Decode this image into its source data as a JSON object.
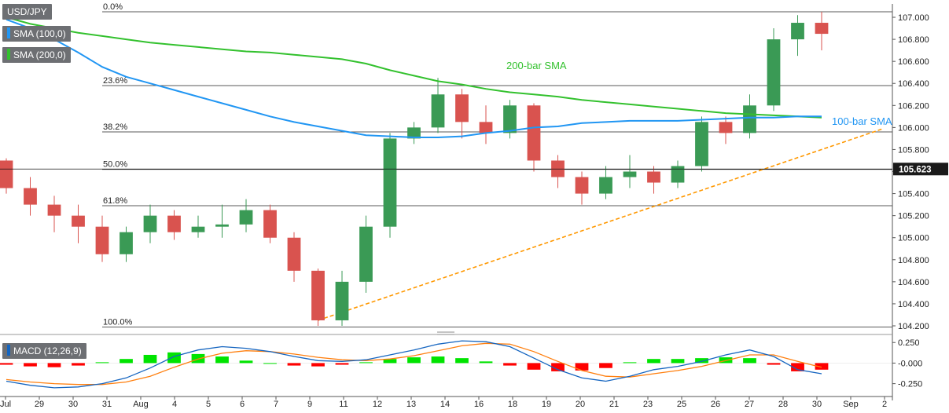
{
  "legend": {
    "symbol": "USD/JPY",
    "sma100": "SMA (100,0)",
    "sma200": "SMA (200,0)",
    "macd": "MACD (12,26,9)"
  },
  "colors": {
    "up": "#3a9a55",
    "down": "#d9534f",
    "sma100": "#2196f3",
    "sma200": "#33c12e",
    "trend": "#ff9800",
    "macd_line": "#1565c0",
    "signal_line": "#ff7f0e",
    "hist_up": "#00e400",
    "hist_down": "#ff0000",
    "price_tag": "#1a1a1a"
  },
  "chart_data": [
    {
      "type": "candlestick",
      "title": "USD/JPY",
      "ylim": [
        104.2,
        107.05
      ],
      "price_ticks": [
        "107.000",
        "106.800",
        "106.600",
        "106.400",
        "106.200",
        "106.000",
        "105.800",
        "105.600",
        "105.400",
        "105.200",
        "105.000",
        "104.800",
        "104.600",
        "104.400",
        "104.200"
      ],
      "last_price": "105.623",
      "x_labels": [
        "Jul",
        "29",
        "30",
        "31",
        "Aug",
        "4",
        "5",
        "6",
        "7",
        "9",
        "11",
        "12",
        "13",
        "14",
        "16",
        "18",
        "19",
        "20",
        "21",
        "23",
        "25",
        "26",
        "27",
        "28",
        "30",
        "Sep",
        "2"
      ],
      "fib_levels": [
        {
          "label": "0.0%",
          "value": 107.05
        },
        {
          "label": "23.6%",
          "value": 106.38
        },
        {
          "label": "38.2%",
          "value": 105.96
        },
        {
          "label": "50.0%",
          "value": 105.62
        },
        {
          "label": "61.8%",
          "value": 105.29
        },
        {
          "label": "100.0%",
          "value": 104.19
        }
      ],
      "annotations": [
        {
          "label": "200-bar SMA"
        },
        {
          "label": "100-bar SMA"
        }
      ],
      "sma100": [
        106.98,
        106.9,
        106.8,
        106.68,
        106.55,
        106.46,
        106.4,
        106.34,
        106.28,
        106.22,
        106.16,
        106.1,
        106.05,
        106.01,
        105.97,
        105.93,
        105.92,
        105.91,
        105.91,
        105.92,
        105.95,
        105.97,
        106.0,
        106.01,
        106.04,
        106.05,
        106.06,
        106.06,
        106.06,
        106.07,
        106.08,
        106.09,
        106.09,
        106.1,
        106.1
      ],
      "sma200": [
        107.0,
        106.94,
        106.9,
        106.86,
        106.83,
        106.8,
        106.77,
        106.75,
        106.73,
        106.71,
        106.69,
        106.68,
        106.66,
        106.64,
        106.62,
        106.58,
        106.52,
        106.47,
        106.42,
        106.39,
        106.35,
        106.32,
        106.3,
        106.28,
        106.25,
        106.23,
        106.21,
        106.19,
        106.17,
        106.15,
        106.13,
        106.12,
        106.11,
        106.1,
        106.09
      ],
      "candles": [
        [
          105.7,
          105.45,
          105.72,
          105.4
        ],
        [
          105.45,
          105.3,
          105.55,
          105.2
        ],
        [
          105.3,
          105.2,
          105.38,
          105.05
        ],
        [
          105.2,
          105.1,
          105.3,
          104.95
        ],
        [
          105.1,
          104.85,
          105.2,
          104.78
        ],
        [
          104.85,
          105.05,
          105.1,
          104.78
        ],
        [
          105.05,
          105.2,
          105.3,
          104.95
        ],
        [
          105.2,
          105.05,
          105.25,
          104.98
        ],
        [
          105.05,
          105.1,
          105.2,
          105.0
        ],
        [
          105.1,
          105.12,
          105.3,
          105.0
        ],
        [
          105.12,
          105.25,
          105.35,
          105.05
        ],
        [
          105.25,
          105.0,
          105.3,
          104.95
        ],
        [
          105.0,
          104.7,
          105.05,
          104.6
        ],
        [
          104.7,
          104.25,
          104.72,
          104.2
        ],
        [
          104.25,
          104.6,
          104.7,
          104.2
        ],
        [
          104.6,
          105.1,
          105.2,
          104.5
        ],
        [
          105.1,
          105.9,
          105.95,
          105.0
        ],
        [
          105.9,
          106.0,
          106.05,
          105.85
        ],
        [
          106.0,
          106.3,
          106.45,
          105.95
        ],
        [
          106.3,
          106.05,
          106.35,
          105.9
        ],
        [
          106.05,
          105.95,
          106.2,
          105.85
        ],
        [
          105.95,
          106.2,
          106.25,
          105.9
        ],
        [
          106.2,
          105.7,
          106.22,
          105.6
        ],
        [
          105.7,
          105.55,
          105.75,
          105.45
        ],
        [
          105.55,
          105.4,
          105.6,
          105.3
        ],
        [
          105.4,
          105.55,
          105.65,
          105.35
        ],
        [
          105.55,
          105.6,
          105.75,
          105.45
        ],
        [
          105.6,
          105.5,
          105.65,
          105.4
        ],
        [
          105.5,
          105.65,
          105.7,
          105.45
        ],
        [
          105.65,
          106.05,
          106.1,
          105.6
        ],
        [
          106.05,
          105.95,
          106.1,
          105.85
        ],
        [
          105.95,
          106.2,
          106.3,
          105.9
        ],
        [
          106.2,
          106.8,
          106.9,
          106.15
        ],
        [
          106.8,
          106.95,
          107.02,
          106.65
        ],
        [
          106.95,
          106.85,
          107.05,
          106.7
        ]
      ]
    },
    {
      "type": "macd",
      "title": "MACD (12,26,9)",
      "ylim": [
        -0.33,
        0.3
      ],
      "ticks": [
        "0.250",
        "-0.000",
        "-0.250"
      ],
      "macd": [
        -0.22,
        -0.27,
        -0.3,
        -0.29,
        -0.25,
        -0.18,
        -0.06,
        0.08,
        0.16,
        0.2,
        0.18,
        0.14,
        0.08,
        0.03,
        0.02,
        0.04,
        0.1,
        0.16,
        0.23,
        0.27,
        0.26,
        0.2,
        0.06,
        -0.08,
        -0.18,
        -0.22,
        -0.16,
        -0.08,
        -0.04,
        0.02,
        0.1,
        0.16,
        0.08,
        -0.08,
        -0.13
      ],
      "signal": [
        -0.2,
        -0.23,
        -0.25,
        -0.26,
        -0.26,
        -0.23,
        -0.16,
        -0.05,
        0.05,
        0.12,
        0.15,
        0.14,
        0.11,
        0.07,
        0.04,
        0.03,
        0.05,
        0.09,
        0.15,
        0.21,
        0.24,
        0.23,
        0.14,
        0.02,
        -0.09,
        -0.16,
        -0.17,
        -0.13,
        -0.09,
        -0.04,
        0.03,
        0.1,
        0.1,
        0.02,
        -0.05
      ]
    }
  ]
}
